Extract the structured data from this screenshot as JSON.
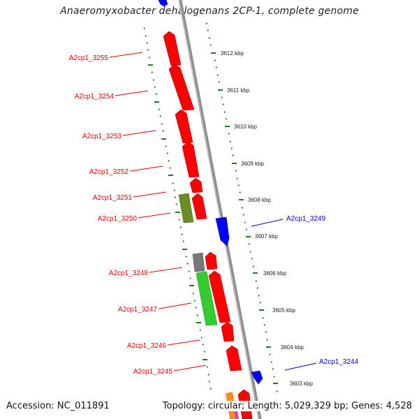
{
  "title": "Anaeromyxobacter dehalogenans 2CP-1, complete genome",
  "footer": {
    "accession_label": "Accession:",
    "accession": "NC_011891",
    "topology_label": "Topology:",
    "topology": "circular",
    "length_label": "Length:",
    "length": "5,029,329 bp",
    "genes_label": "Genes:",
    "genes": "4,528"
  },
  "colors": {
    "backbone": "#8f8f8f",
    "tick": "#1a7f1a",
    "forward_gene": "#ff0000",
    "reverse_gene": "#0000ff",
    "label_forward": "#e00000",
    "label_reverse": "#0000cc",
    "gene_olive": "#6b8e23",
    "gene_lightgreen": "#33cc33",
    "gene_gray": "#777777"
  },
  "scale_labels": [
    "3612 kbp",
    "3611 kbp",
    "3610 kbp",
    "3609 kbp",
    "3608 kbp",
    "3607 kbp",
    "3606 kbp",
    "3605 kbp",
    "3604 kbp",
    "3603 kbp"
  ],
  "gene_labels_left": [
    "A2cp1_3255",
    "A2cp1_3254",
    "A2cp1_3253",
    "A2cp1_3252",
    "A2cp1_3251",
    "A2cp1_3250",
    "A2cp1_3248",
    "A2cp1_3247",
    "A2cp1_3246",
    "A2cp1_3245"
  ],
  "gene_labels_right": [
    "A2cp1_3249",
    "A2cp1_3244"
  ]
}
